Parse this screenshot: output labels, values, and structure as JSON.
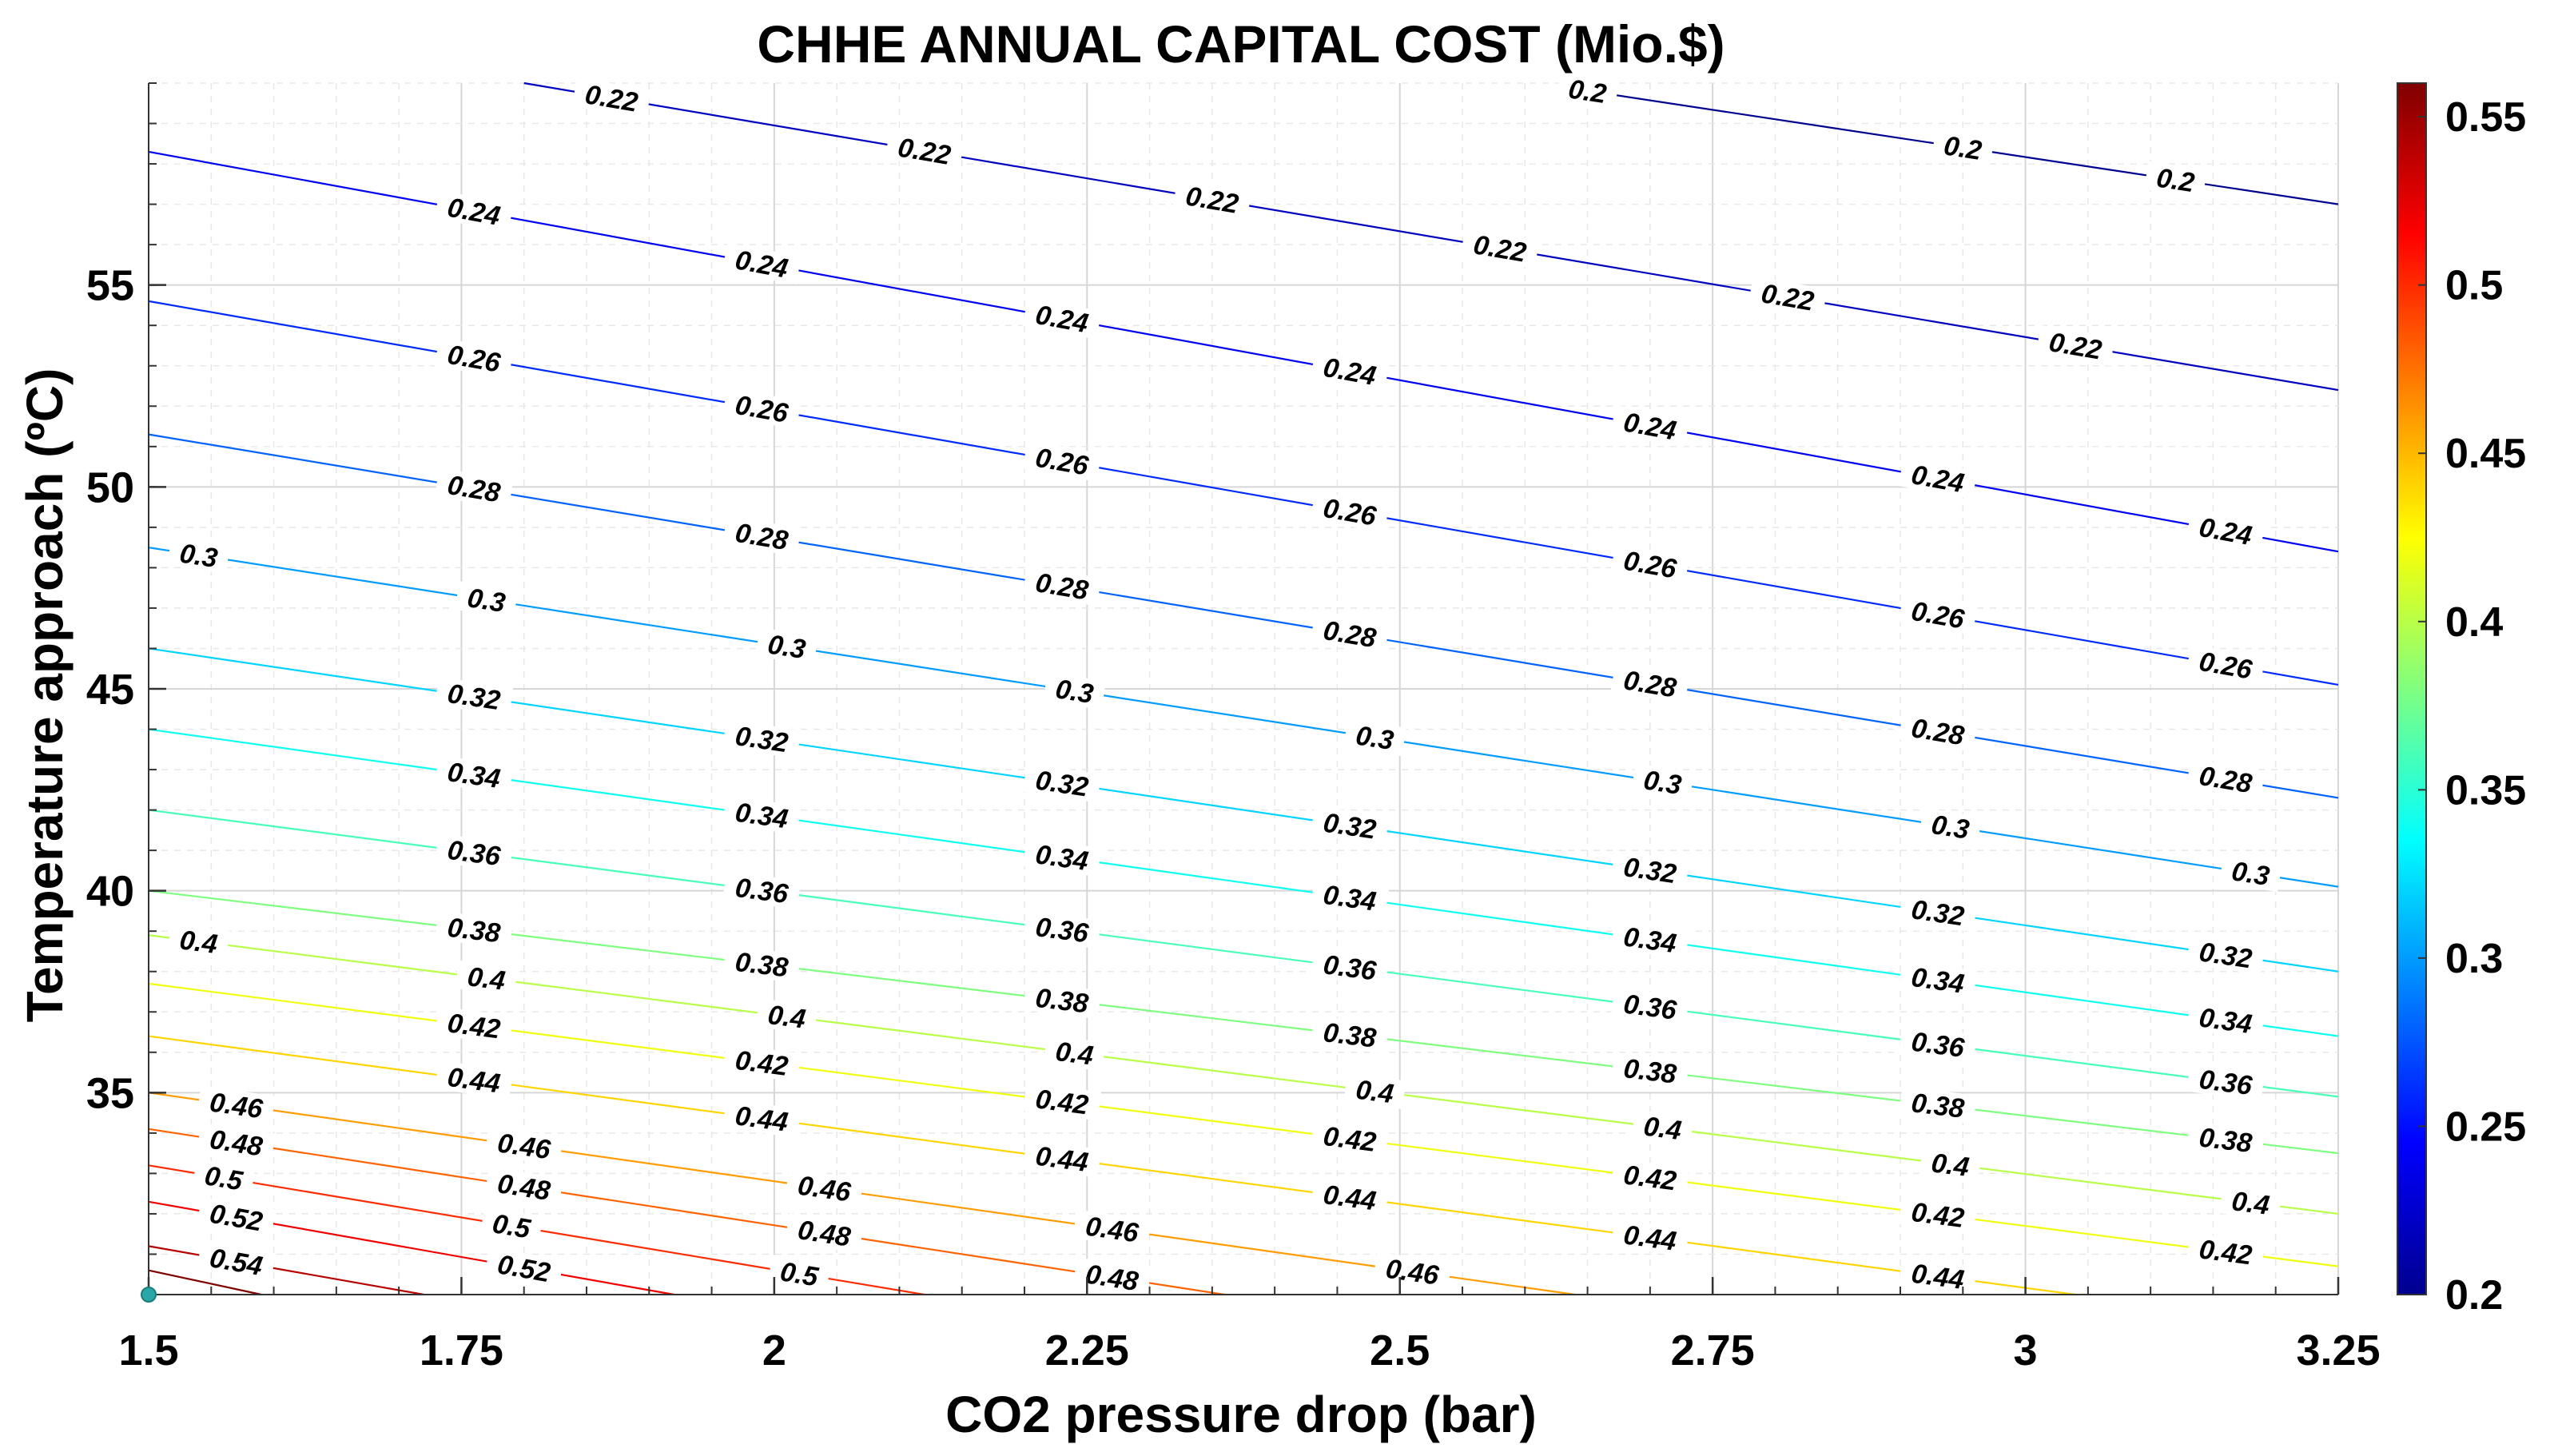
{
  "chart_data": {
    "type": "contour",
    "title": "CHHE ANNUAL CAPITAL COST (Mio.$)",
    "xlabel": "CO2 pressure drop (bar)",
    "ylabel": "Temperature approach (ºC)",
    "xlim": [
      1.5,
      3.25
    ],
    "ylim": [
      30,
      60
    ],
    "xticks": [
      1.5,
      1.75,
      2,
      2.25,
      2.5,
      2.75,
      3,
      3.25
    ],
    "xtick_labels": [
      "1.5",
      "1.75",
      "2",
      "2.25",
      "2.5",
      "2.75",
      "3",
      "3.25"
    ],
    "yticks": [
      35,
      40,
      45,
      50,
      55
    ],
    "ytick_labels": [
      "35",
      "40",
      "45",
      "50",
      "55"
    ],
    "grid": true,
    "colorbar": {
      "range": [
        0.2,
        0.56
      ],
      "ticks": [
        0.2,
        0.25,
        0.3,
        0.35,
        0.4,
        0.45,
        0.5,
        0.55
      ],
      "tick_labels": [
        "0.2",
        "0.25",
        "0.3",
        "0.35",
        "0.4",
        "0.45",
        "0.5",
        "0.55"
      ],
      "colormap": "jet"
    },
    "marker": {
      "x": 1.5,
      "y": 30,
      "color": "#2aa6a6"
    },
    "contours": [
      {
        "level": 0.2,
        "label": "0.2",
        "points": [
          [
            2.63,
            59.9
          ],
          [
            3.25,
            57.0
          ]
        ],
        "label_x": [
          2.65,
          2.95,
          3.12
        ]
      },
      {
        "level": 0.22,
        "label": "0.22",
        "points": [
          [
            1.8,
            60.0
          ],
          [
            3.25,
            52.4
          ]
        ],
        "label_x": [
          1.87,
          2.12,
          2.35,
          2.58,
          2.81,
          3.04
        ]
      },
      {
        "level": 0.24,
        "label": "0.24",
        "points": [
          [
            1.5,
            58.3
          ],
          [
            3.25,
            48.4
          ]
        ],
        "label_x": [
          1.76,
          1.99,
          2.23,
          2.46,
          2.7,
          2.93,
          3.16
        ]
      },
      {
        "level": 0.26,
        "label": "0.26",
        "points": [
          [
            1.5,
            54.6
          ],
          [
            3.25,
            45.1
          ]
        ],
        "label_x": [
          1.76,
          1.99,
          2.23,
          2.46,
          2.7,
          2.93,
          3.16
        ]
      },
      {
        "level": 0.28,
        "label": "0.28",
        "points": [
          [
            1.5,
            51.3
          ],
          [
            3.25,
            42.3
          ]
        ],
        "label_x": [
          1.76,
          1.99,
          2.23,
          2.46,
          2.7,
          2.93,
          3.16
        ]
      },
      {
        "level": 0.3,
        "label": "0.3",
        "points": [
          [
            1.5,
            48.5
          ],
          [
            3.25,
            40.1
          ]
        ],
        "label_x": [
          1.54,
          1.77,
          2.01,
          2.24,
          2.48,
          2.71,
          2.94,
          3.18
        ]
      },
      {
        "level": 0.32,
        "label": "0.32",
        "points": [
          [
            1.5,
            46.0
          ],
          [
            3.25,
            38.0
          ]
        ],
        "label_x": [
          1.76,
          1.99,
          2.23,
          2.46,
          2.7,
          2.93,
          3.16
        ]
      },
      {
        "level": 0.34,
        "label": "0.34",
        "points": [
          [
            1.5,
            44.0
          ],
          [
            3.25,
            36.4
          ]
        ],
        "label_x": [
          1.76,
          1.99,
          2.23,
          2.46,
          2.7,
          2.93,
          3.16
        ]
      },
      {
        "level": 0.36,
        "label": "0.36",
        "points": [
          [
            1.5,
            42.0
          ],
          [
            3.25,
            34.9
          ]
        ],
        "label_x": [
          1.76,
          1.99,
          2.23,
          2.46,
          2.7,
          2.93,
          3.16
        ]
      },
      {
        "level": 0.38,
        "label": "0.38",
        "points": [
          [
            1.5,
            40.0
          ],
          [
            3.25,
            33.5
          ]
        ],
        "label_x": [
          1.76,
          1.99,
          2.23,
          2.46,
          2.7,
          2.93,
          3.16
        ]
      },
      {
        "level": 0.4,
        "label": "0.4",
        "points": [
          [
            1.5,
            38.9
          ],
          [
            3.25,
            32.0
          ]
        ],
        "label_x": [
          1.54,
          1.77,
          2.01,
          2.24,
          2.48,
          2.71,
          2.94,
          3.18
        ]
      },
      {
        "level": 0.42,
        "label": "0.42",
        "points": [
          [
            1.5,
            37.7
          ],
          [
            3.25,
            30.7
          ]
        ],
        "label_x": [
          1.76,
          1.99,
          2.23,
          2.46,
          2.7,
          2.93,
          3.16
        ]
      },
      {
        "level": 0.44,
        "label": "0.44",
        "points": [
          [
            1.5,
            36.4
          ],
          [
            3.04,
            30.0
          ]
        ],
        "label_x": [
          1.76,
          1.99,
          2.23,
          2.46,
          2.7,
          2.93
        ]
      },
      {
        "level": 0.46,
        "label": "0.46",
        "points": [
          [
            1.5,
            35.0
          ],
          [
            2.64,
            30.0
          ]
        ],
        "label_x": [
          1.57,
          1.8,
          2.04,
          2.27,
          2.51
        ]
      },
      {
        "level": 0.48,
        "label": "0.48",
        "points": [
          [
            1.5,
            34.1
          ],
          [
            2.36,
            30.0
          ]
        ],
        "label_x": [
          1.57,
          1.8,
          2.04,
          2.27
        ]
      },
      {
        "level": 0.5,
        "label": "0.5",
        "points": [
          [
            1.5,
            33.2
          ],
          [
            2.12,
            30.0
          ]
        ],
        "label_x": [
          1.56,
          1.79,
          2.02
        ]
      },
      {
        "level": 0.52,
        "label": "0.52",
        "points": [
          [
            1.5,
            32.3
          ],
          [
            1.92,
            30.0
          ]
        ],
        "label_x": [
          1.57,
          1.8
        ]
      },
      {
        "level": 0.54,
        "label": "0.54",
        "points": [
          [
            1.5,
            31.2
          ],
          [
            1.72,
            30.0
          ]
        ],
        "label_x": [
          1.57
        ]
      },
      {
        "level": 0.56,
        "label": "",
        "points": [
          [
            1.5,
            30.6
          ],
          [
            1.59,
            30.0
          ]
        ],
        "label_x": []
      }
    ]
  }
}
